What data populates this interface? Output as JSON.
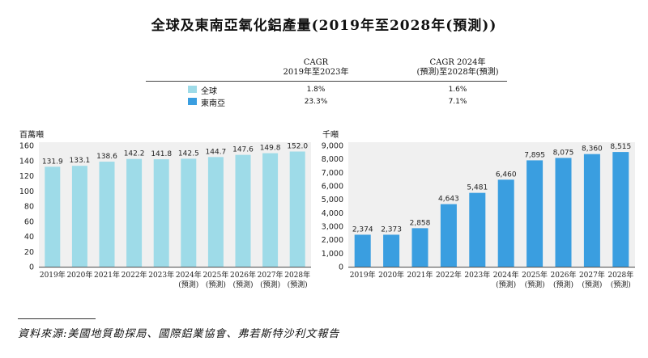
{
  "title": "全球及東南亞氧化鋁產量(2019年至2028年(預測))",
  "cagr": {
    "col1_line1": "CAGR",
    "col1_line2": "2019年至2023年",
    "col2_line1": "CAGR 2024年",
    "col2_line2": "(預測)至2028年(預測)",
    "rows": [
      {
        "label": "全球",
        "color": "#9edbe8",
        "v1": "1.8%",
        "v2": "1.6%"
      },
      {
        "label": "東南亞",
        "color": "#3a9ee0",
        "v1": "23.3%",
        "v2": "7.1%"
      }
    ]
  },
  "colors": {
    "global": "#9edbe8",
    "sea": "#3a9ee0",
    "plot_bg": "#f0f0f0"
  },
  "chart_data": [
    {
      "type": "bar",
      "name": "global",
      "unit_label": "百萬噸",
      "categories": [
        "2019年",
        "2020年",
        "2021年",
        "2022年",
        "2023年",
        "2024年",
        "2025年",
        "2026年",
        "2027年",
        "2028年"
      ],
      "category_sublabels": [
        "",
        "",
        "",
        "",
        "",
        "(預測)",
        "(預測)",
        "(預測)",
        "(預測)",
        "(預測)"
      ],
      "values": [
        131.9,
        133.1,
        138.6,
        142.2,
        141.8,
        142.5,
        144.7,
        147.6,
        149.8,
        152.0
      ],
      "value_labels": [
        "131.9",
        "133.1",
        "138.6",
        "142.2",
        "141.8",
        "142.5",
        "144.7",
        "147.6",
        "149.8",
        "152.0"
      ],
      "ylim": [
        0,
        160
      ],
      "yticks": [
        0,
        20,
        40,
        60,
        80,
        100,
        120,
        140,
        160
      ],
      "ytick_labels": [
        "0",
        "20",
        "40",
        "60",
        "80",
        "100",
        "120",
        "140",
        "160"
      ]
    },
    {
      "type": "bar",
      "name": "sea",
      "unit_label": "千噸",
      "categories": [
        "2019年",
        "2020年",
        "2021年",
        "2022年",
        "2023年",
        "2024年",
        "2025年",
        "2026年",
        "2027年",
        "2028年"
      ],
      "category_sublabels": [
        "",
        "",
        "",
        "",
        "",
        "(預測)",
        "(預測)",
        "(預測)",
        "(預測)",
        "(預測)"
      ],
      "values": [
        2374,
        2373,
        2858,
        4643,
        5481,
        6460,
        7895,
        8075,
        8360,
        8515
      ],
      "value_labels": [
        "2,374",
        "2,373",
        "2,858",
        "4,643",
        "5,481",
        "6,460",
        "7,895",
        "8,075",
        "8,360",
        "8,515"
      ],
      "ylim": [
        0,
        9000
      ],
      "yticks": [
        0,
        1000,
        2000,
        3000,
        4000,
        5000,
        6000,
        7000,
        8000,
        9000
      ],
      "ytick_labels": [
        "0",
        "1,000",
        "2,000",
        "3,000",
        "4,000",
        "5,000",
        "6,000",
        "7,000",
        "8,000",
        "9,000"
      ]
    }
  ],
  "source": "資料來源:美國地質勘探局、國際鋁業協會、弗若斯特沙利文報告"
}
